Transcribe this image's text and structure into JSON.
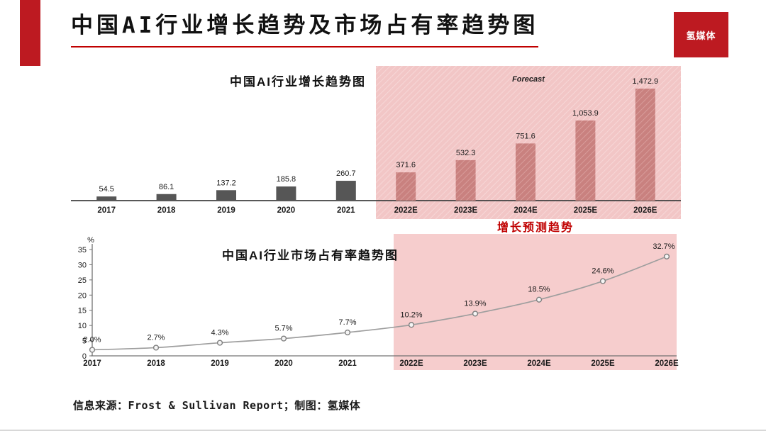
{
  "page": {
    "title": "中国AI行业增长趋势及市场占有率趋势图",
    "logo_text": "氢媒体",
    "forecast_callout": "增长预测趋势",
    "source_note": "信息来源：Frost & Sullivan Report；制图：氢媒体"
  },
  "colors": {
    "accent": "#c00000",
    "brand_red": "#bd1a21",
    "bar_history": "#565656",
    "bar_forecast": "#c9817f",
    "bar_forecast_hatch": "#dca3a1",
    "forecast_bg": "#f2c6c6",
    "forecast_hatch": "#f8dbdb",
    "forecast_bg_bottom": "#f6cdcd",
    "line": "#9e9e9e",
    "marker_fill": "#f5f5f5",
    "marker_stroke": "#7f7f7f",
    "axis": "#404040",
    "axis2": "#737373",
    "text": "#1a1a1a"
  },
  "chart_data": [
    {
      "type": "bar",
      "title": "中国AI行业增长趋势图",
      "forecast_label": "Forecast",
      "categories": [
        "2017",
        "2018",
        "2019",
        "2020",
        "2021",
        "2022E",
        "2023E",
        "2024E",
        "2025E",
        "2026E"
      ],
      "values": [
        54.5,
        86.1,
        137.2,
        185.8,
        260.7,
        371.6,
        532.3,
        751.6,
        1053.9,
        1472.9
      ],
      "value_labels": [
        "54.5",
        "86.1",
        "137.2",
        "185.8",
        "260.7",
        "371.6",
        "532.3",
        "751.6",
        "1,053.9",
        "1,472.9"
      ],
      "forecast_from_index": 5,
      "xlabel": "",
      "ylabel": "",
      "ylim": [
        0,
        1600
      ],
      "grid": false,
      "legend": false
    },
    {
      "type": "line",
      "title": "中国AI行业市场占有率趋势图",
      "categories": [
        "2017",
        "2018",
        "2019",
        "2020",
        "2021",
        "2022E",
        "2023E",
        "2024E",
        "2025E",
        "2026E"
      ],
      "values": [
        2.0,
        2.7,
        4.3,
        5.7,
        7.7,
        10.2,
        13.9,
        18.5,
        24.6,
        32.7
      ],
      "value_labels": [
        "2.0%",
        "2.7%",
        "4.3%",
        "5.7%",
        "7.7%",
        "10.2%",
        "13.9%",
        "18.5%",
        "24.6%",
        "32.7%"
      ],
      "forecast_from_index": 5,
      "xlabel": "",
      "ylabel": "%",
      "yticks": [
        0,
        5,
        10,
        15,
        20,
        25,
        30,
        35
      ],
      "ylim": [
        0,
        35
      ],
      "grid": false,
      "legend": false
    }
  ]
}
